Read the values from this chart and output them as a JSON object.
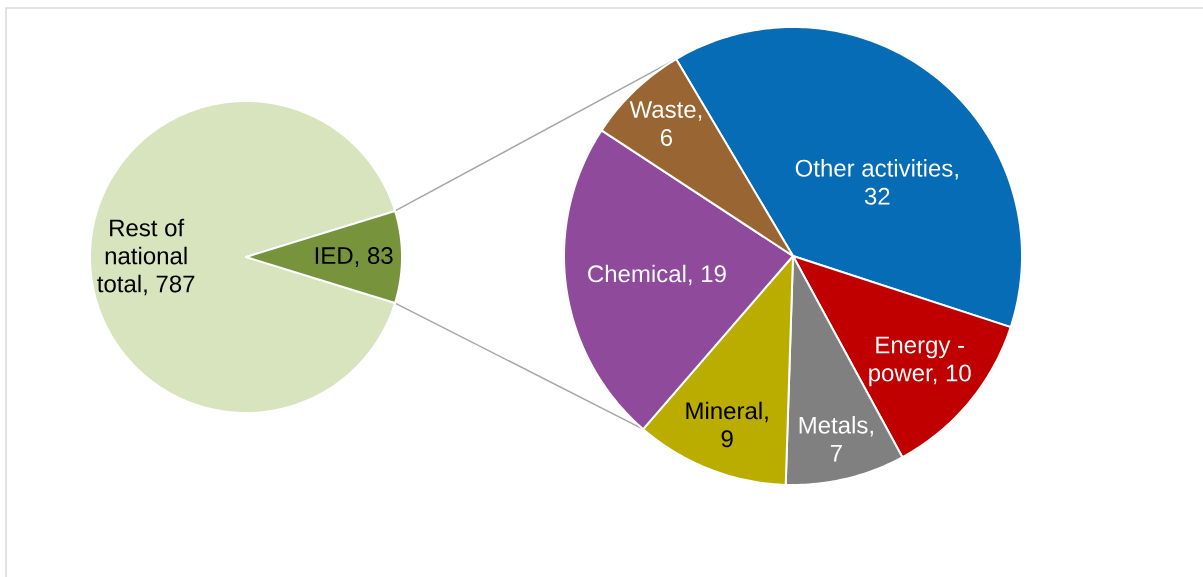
{
  "chart_data": [
    {
      "type": "pie",
      "categories": [
        "Rest of national total, 787",
        "IED, 83"
      ],
      "values": [
        787,
        83
      ],
      "colors": [
        "#d7e4bd",
        "#77933c"
      ]
    },
    {
      "type": "pie",
      "categories": [
        "Other activities, 32",
        "Energy - power, 10",
        "Metals, 7",
        "Mineral, 9",
        "Chemical, 19",
        "Waste, 6"
      ],
      "values": [
        32,
        10,
        7,
        9,
        19,
        6
      ],
      "colors": [
        "#066cb6",
        "#c00000",
        "#808080",
        "#bbac00",
        "#8f4a9b",
        "#996633"
      ]
    }
  ]
}
